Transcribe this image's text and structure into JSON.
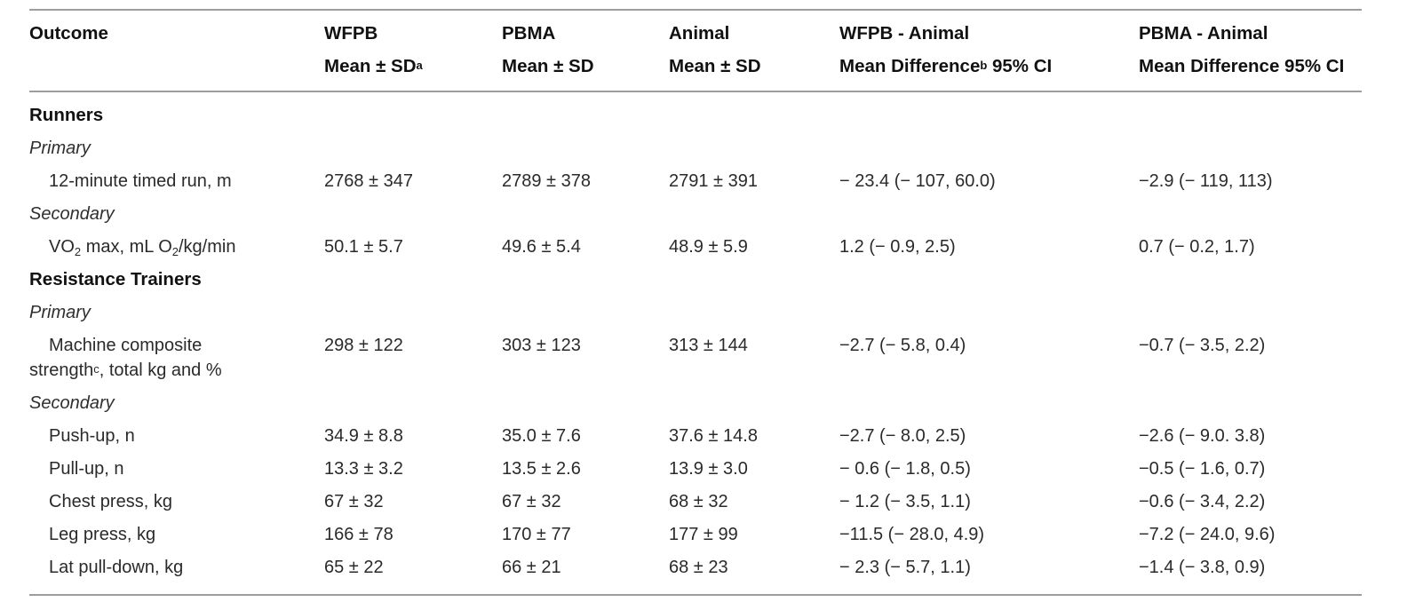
{
  "colors": {
    "background": "#ffffff",
    "rule": "#9d9d9d",
    "header_text": "#111111",
    "body_text": "#2a2a2a"
  },
  "table": {
    "header": {
      "cols": [
        {
          "line1": "Outcome",
          "line2_pre": "",
          "sup": "",
          "line2_post": ""
        },
        {
          "line1": "WFPB",
          "line2_pre": "Mean ± SD",
          "sup": "a",
          "line2_post": ""
        },
        {
          "line1": "PBMA",
          "line2_pre": "Mean ± SD",
          "sup": "",
          "line2_post": ""
        },
        {
          "line1": "Animal",
          "line2_pre": "Mean ± SD",
          "sup": "",
          "line2_post": ""
        },
        {
          "line1": "WFPB - Animal",
          "line2_pre": "Mean Difference",
          "sup": "b",
          "line2_post": " 95% CI"
        },
        {
          "line1": "PBMA - Animal",
          "line2_pre": "Mean Difference 95% CI",
          "sup": "",
          "line2_post": ""
        }
      ]
    },
    "rows": [
      {
        "type": "section",
        "label": "Runners"
      },
      {
        "type": "subsection",
        "label": "Primary"
      },
      {
        "type": "data",
        "label": "12-minute timed run, m",
        "wfpb": "2768 ± 347",
        "pbma": "2789 ± 378",
        "animal": "2791 ± 391",
        "wfpb_animal": "− 23.4 (− 107, 60.0)",
        "pbma_animal": "−2.9 (− 119, 113)"
      },
      {
        "type": "subsection",
        "label": "Secondary"
      },
      {
        "type": "data",
        "label_parts": {
          "p1": "VO",
          "sub1": "2",
          "p2": " max, mL O",
          "sub2": "2",
          "p3": "/kg/min"
        },
        "wfpb": "50.1 ± 5.7",
        "pbma": "49.6 ± 5.4",
        "animal": "48.9 ± 5.9",
        "wfpb_animal": "1.2 (− 0.9, 2.5)",
        "pbma_animal": "0.7 (− 0.2, 1.7)"
      },
      {
        "type": "section",
        "label": "Resistance Trainers"
      },
      {
        "type": "subsection",
        "label": "Primary"
      },
      {
        "type": "data",
        "label_parts": {
          "l1": "Machine composite",
          "l2": "strength",
          "sup": "c",
          "l3": ", total kg and %"
        },
        "wfpb": "298 ± 122",
        "pbma": "303 ± 123",
        "animal": "313 ± 144",
        "wfpb_animal": "−2.7 (− 5.8, 0.4)",
        "pbma_animal": "−0.7 (− 3.5, 2.2)"
      },
      {
        "type": "subsection",
        "label": "Secondary"
      },
      {
        "type": "data",
        "label": "Push-up, n",
        "wfpb": "34.9 ± 8.8",
        "pbma": "35.0 ± 7.6",
        "animal": "37.6 ± 14.8",
        "wfpb_animal": "−2.7 (− 8.0, 2.5)",
        "pbma_animal": "−2.6 (− 9.0. 3.8)"
      },
      {
        "type": "data",
        "label": "Pull-up, n",
        "wfpb": "13.3 ± 3.2",
        "pbma": "13.5 ± 2.6",
        "animal": "13.9 ± 3.0",
        "wfpb_animal": "− 0.6 (− 1.8, 0.5)",
        "pbma_animal": "−0.5 (− 1.6, 0.7)"
      },
      {
        "type": "data",
        "label": "Chest press, kg",
        "wfpb": "67 ± 32",
        "pbma": "67 ± 32",
        "animal": "68 ± 32",
        "wfpb_animal": "− 1.2 (− 3.5, 1.1)",
        "pbma_animal": "−0.6 (− 3.4, 2.2)"
      },
      {
        "type": "data",
        "label": "Leg press, kg",
        "wfpb": "166 ± 78",
        "pbma": "170 ± 77",
        "animal": "177 ± 99",
        "wfpb_animal": "−11.5 (− 28.0, 4.9)",
        "pbma_animal": "−7.2 (− 24.0, 9.6)"
      },
      {
        "type": "data",
        "label": "Lat pull-down, kg",
        "wfpb": "65 ± 22",
        "pbma": "66 ± 21",
        "animal": "68 ± 23",
        "wfpb_animal": "− 2.3 (− 5.7, 1.1)",
        "pbma_animal": "−1.4 (− 3.8, 0.9)"
      }
    ]
  }
}
